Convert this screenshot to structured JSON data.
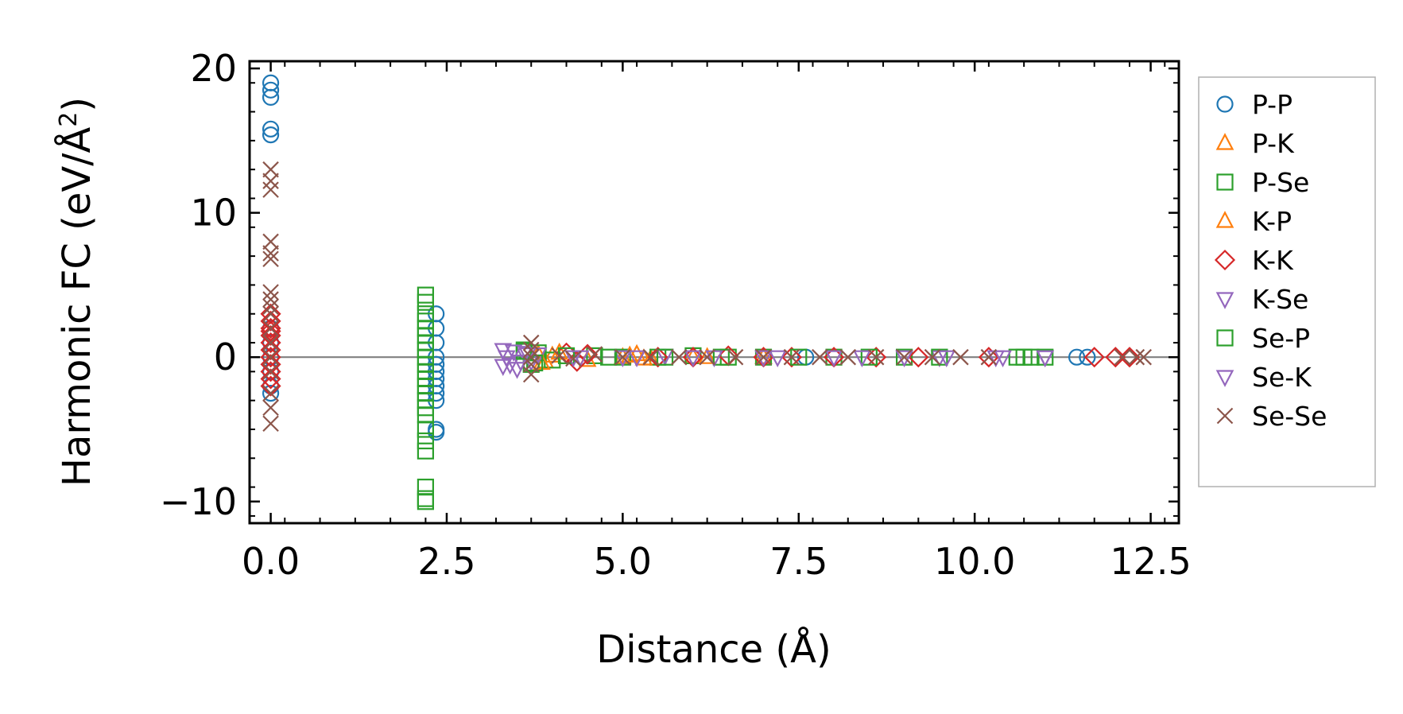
{
  "chart_data": {
    "type": "scatter",
    "title": "",
    "xlabel": "Distance (Å)",
    "ylabel_main": "Harmonic FC (eV/Å",
    "ylabel_sup": "2",
    "ylabel_close": ")",
    "xlim": [
      -0.3,
      12.9
    ],
    "ylim": [
      -11.5,
      20.5
    ],
    "xticks": [
      0.0,
      2.5,
      5.0,
      7.5,
      10.0,
      12.5
    ],
    "xtick_labels": [
      "0.0",
      "2.5",
      "5.0",
      "7.5",
      "10.0",
      "12.5"
    ],
    "yticks": [
      -10,
      0,
      10,
      20
    ],
    "ytick_labels": [
      "−10",
      "0",
      "10",
      "20"
    ],
    "grid": false,
    "zero_line": true,
    "legend_position": "outside-right",
    "series": [
      {
        "name": "P-P",
        "marker": "circle",
        "color": "#1f77b4",
        "x": [
          0.0,
          0.0,
          0.0,
          0.0,
          0.0,
          0.0,
          0.0,
          0.0,
          0.0,
          0.0,
          0.0,
          2.35,
          2.35,
          2.35,
          2.35,
          2.35,
          2.35,
          2.35,
          2.35,
          2.35,
          2.35,
          2.35,
          2.35,
          11.45,
          11.6,
          7.6
        ],
        "y": [
          19.0,
          18.5,
          18.0,
          15.8,
          15.4,
          2.0,
          1.0,
          0.0,
          -1.0,
          -2.0,
          -2.5,
          3.0,
          2.0,
          1.0,
          0.0,
          -0.5,
          -1.0,
          -1.5,
          -2.0,
          -2.5,
          -3.0,
          -5.0,
          -5.2,
          0.0,
          0.0,
          0.0
        ]
      },
      {
        "name": "P-K",
        "marker": "triangle-up",
        "color": "#ff7f0e",
        "x": [
          3.8,
          3.9,
          4.0,
          5.0,
          5.2,
          5.4,
          6.0,
          7.0
        ],
        "y": [
          0.2,
          -0.3,
          0.1,
          0.0,
          0.2,
          -0.1,
          0.0,
          0.0
        ]
      },
      {
        "name": "P-Se",
        "marker": "square",
        "color": "#2ca02c",
        "x": [
          2.2,
          2.2,
          2.2,
          2.2,
          2.2,
          2.2,
          2.2,
          2.2,
          2.2,
          2.2,
          2.2,
          2.2,
          2.2,
          2.2,
          2.2,
          2.2,
          2.2,
          2.2,
          2.2,
          2.2,
          2.2,
          2.2,
          2.2,
          3.6,
          3.7,
          3.8,
          4.0,
          4.6,
          5.0,
          5.5,
          6.0,
          6.5,
          7.0,
          8.0,
          9.0,
          10.6,
          10.8
        ],
        "y": [
          4.3,
          3.8,
          3.0,
          2.5,
          2.0,
          1.5,
          1.0,
          0.5,
          0.0,
          -0.5,
          -1.0,
          -1.5,
          -2.0,
          -2.5,
          -3.0,
          -3.5,
          -4.0,
          -5.0,
          -5.8,
          -6.5,
          -9.0,
          -9.8,
          -10.0,
          0.5,
          -0.5,
          0.3,
          -0.2,
          0.1,
          0.0,
          0.0,
          0.1,
          0.0,
          0.0,
          0.0,
          0.0,
          0.0,
          0.0
        ]
      },
      {
        "name": "K-P",
        "marker": "triangle-up",
        "color": "#ff7f0e",
        "x": [
          3.85,
          4.1,
          4.5,
          5.1,
          5.3,
          6.2
        ],
        "y": [
          -0.4,
          0.3,
          -0.2,
          0.1,
          -0.1,
          0.0
        ]
      },
      {
        "name": "K-K",
        "marker": "diamond",
        "color": "#d62728",
        "x": [
          0.0,
          0.0,
          0.0,
          0.0,
          0.0,
          0.0,
          0.0,
          0.0,
          0.0,
          0.0,
          0.0,
          0.0,
          4.2,
          4.35,
          4.5,
          5.5,
          6.0,
          6.5,
          7.0,
          7.4,
          8.0,
          8.6,
          9.2,
          10.2,
          11.7,
          12.0,
          12.2
        ],
        "y": [
          3.0,
          2.5,
          2.0,
          1.5,
          1.0,
          0.5,
          0.0,
          -0.5,
          -1.0,
          -1.5,
          -2.0,
          1.8,
          0.3,
          -0.3,
          0.2,
          0.0,
          0.0,
          0.1,
          0.0,
          0.0,
          0.0,
          0.0,
          0.0,
          0.0,
          0.0,
          0.0,
          0.0
        ]
      },
      {
        "name": "K-Se",
        "marker": "triangle-down",
        "color": "#9467bd",
        "x": [
          3.3,
          3.35,
          3.4,
          3.5,
          3.6,
          3.7,
          3.8,
          4.4,
          5.0,
          5.6,
          6.0,
          7.0,
          8.0,
          9.0,
          9.5,
          10.3,
          11.0
        ],
        "y": [
          0.5,
          0.0,
          -0.5,
          -0.8,
          0.3,
          -0.3,
          0.2,
          0.0,
          0.0,
          0.1,
          0.0,
          0.0,
          0.0,
          0.0,
          0.0,
          0.0,
          0.0
        ]
      },
      {
        "name": "Se-P",
        "marker": "square",
        "color": "#2ca02c",
        "x": [
          3.6,
          3.75,
          4.2,
          4.8,
          5.6,
          6.4,
          7.5,
          8.5,
          9.5,
          10.7,
          11.0
        ],
        "y": [
          0.4,
          -0.4,
          0.1,
          0.0,
          0.0,
          0.0,
          0.0,
          0.0,
          0.0,
          0.0,
          0.0
        ]
      },
      {
        "name": "Se-K",
        "marker": "triangle-down",
        "color": "#9467bd",
        "x": [
          3.3,
          3.45,
          3.55,
          3.65,
          4.3,
          5.2,
          6.3,
          7.2,
          8.4,
          9.6,
          10.4,
          11.0
        ],
        "y": [
          -0.6,
          0.4,
          -0.3,
          0.2,
          0.0,
          0.0,
          0.0,
          0.0,
          0.0,
          0.0,
          0.0,
          0.0
        ]
      },
      {
        "name": "Se-Se",
        "marker": "x",
        "color": "#8c564b",
        "x": [
          0.0,
          0.0,
          0.0,
          0.0,
          0.0,
          0.0,
          0.0,
          0.0,
          0.0,
          0.0,
          0.0,
          0.0,
          0.0,
          0.0,
          0.0,
          0.0,
          0.0,
          3.7,
          3.7,
          3.7,
          3.7,
          3.7,
          4.1,
          4.3,
          4.6,
          5.0,
          5.4,
          5.8,
          6.2,
          6.6,
          7.0,
          7.4,
          7.8,
          8.2,
          8.6,
          9.0,
          9.4,
          9.8,
          10.2,
          12.1,
          12.3,
          12.4
        ],
        "y": [
          13.0,
          12.2,
          11.6,
          8.0,
          7.2,
          6.8,
          4.5,
          4.0,
          3.5,
          3.0,
          2.0,
          1.0,
          0.0,
          -1.0,
          -2.5,
          -3.5,
          -4.6,
          1.0,
          0.5,
          0.0,
          -0.5,
          -1.2,
          0.1,
          -0.1,
          0.2,
          0.0,
          0.0,
          0.0,
          0.0,
          0.0,
          0.0,
          0.0,
          0.0,
          0.0,
          0.0,
          0.0,
          0.0,
          0.0,
          0.0,
          0.0,
          0.0,
          0.0
        ]
      }
    ]
  }
}
